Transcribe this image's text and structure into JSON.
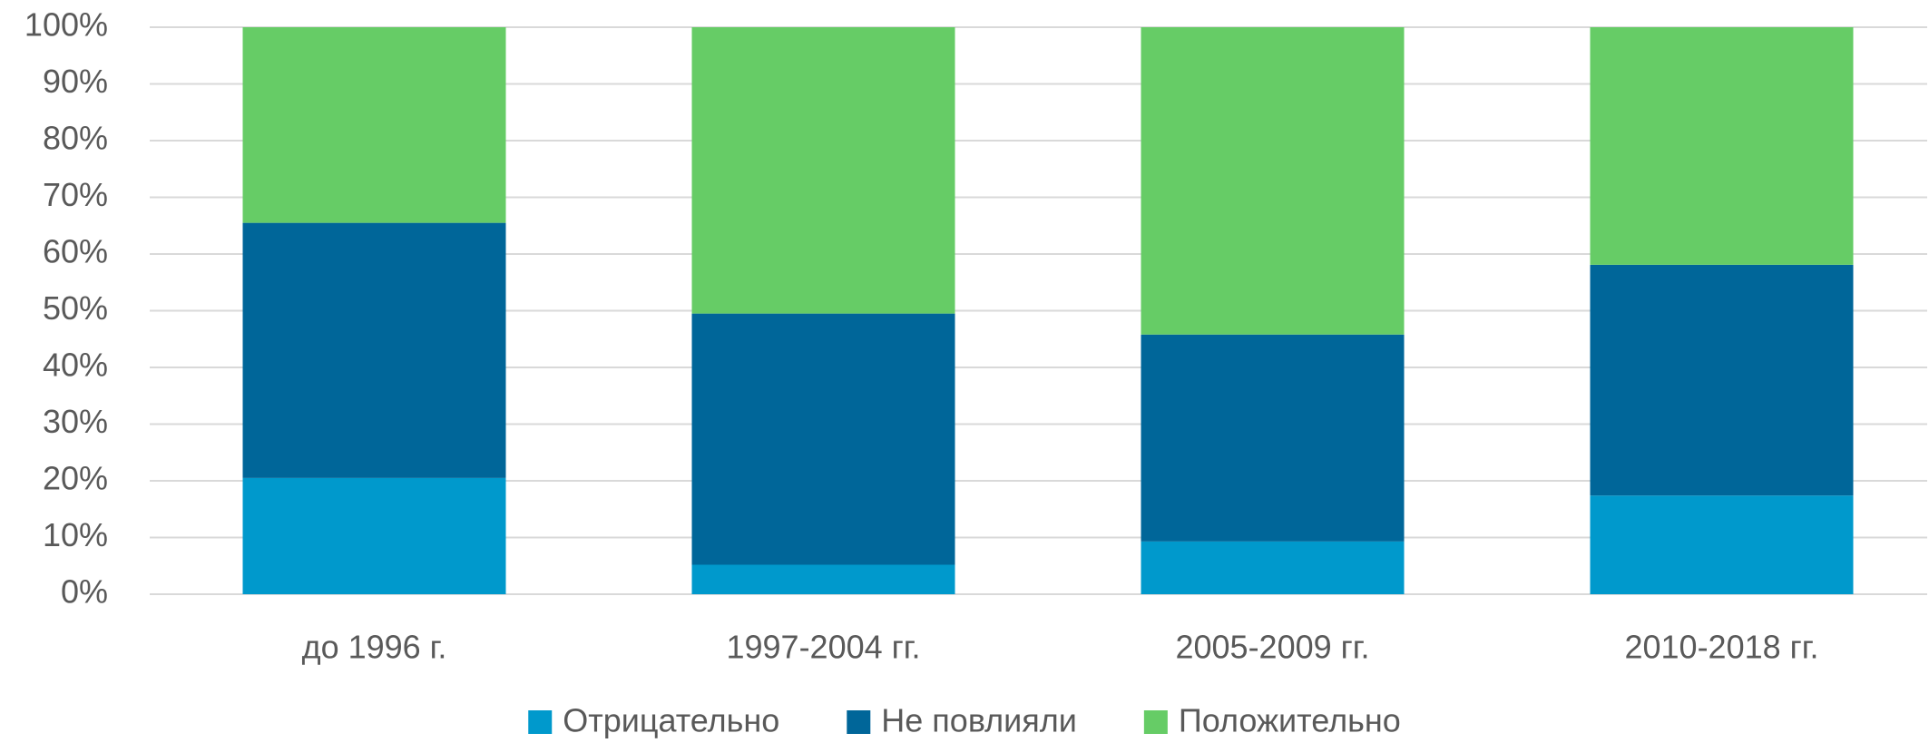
{
  "chart_data": {
    "type": "stacked_bar",
    "categories": [
      "до 1996 г.",
      "1997-2004 гг.",
      "2005-2009 гг.",
      "2010-2018 гг."
    ],
    "series": [
      {
        "name": "Отрицательно",
        "color": "#0099cc",
        "values": [
          20.5,
          5.2,
          9.3,
          17.4
        ]
      },
      {
        "name": "Не повлияли",
        "color": "#006699",
        "values": [
          45,
          44.3,
          36.5,
          40.7
        ]
      },
      {
        "name": "Положительно",
        "color": "#66cc66",
        "values": [
          34.5,
          50.5,
          54.2,
          41.9
        ]
      }
    ],
    "ylim": [
      0,
      100
    ],
    "yticks": [
      {
        "value": 0,
        "label": "0%"
      },
      {
        "value": 10,
        "label": "10%"
      },
      {
        "value": 20,
        "label": "20%"
      },
      {
        "value": 30,
        "label": "30%"
      },
      {
        "value": 40,
        "label": "40%"
      },
      {
        "value": 50,
        "label": "50%"
      },
      {
        "value": 60,
        "label": "60%"
      },
      {
        "value": 70,
        "label": "70%"
      },
      {
        "value": 80,
        "label": "80%"
      },
      {
        "value": 90,
        "label": "90%"
      },
      {
        "value": 100,
        "label": "100%"
      }
    ],
    "grid": true,
    "legend": "bottom"
  }
}
